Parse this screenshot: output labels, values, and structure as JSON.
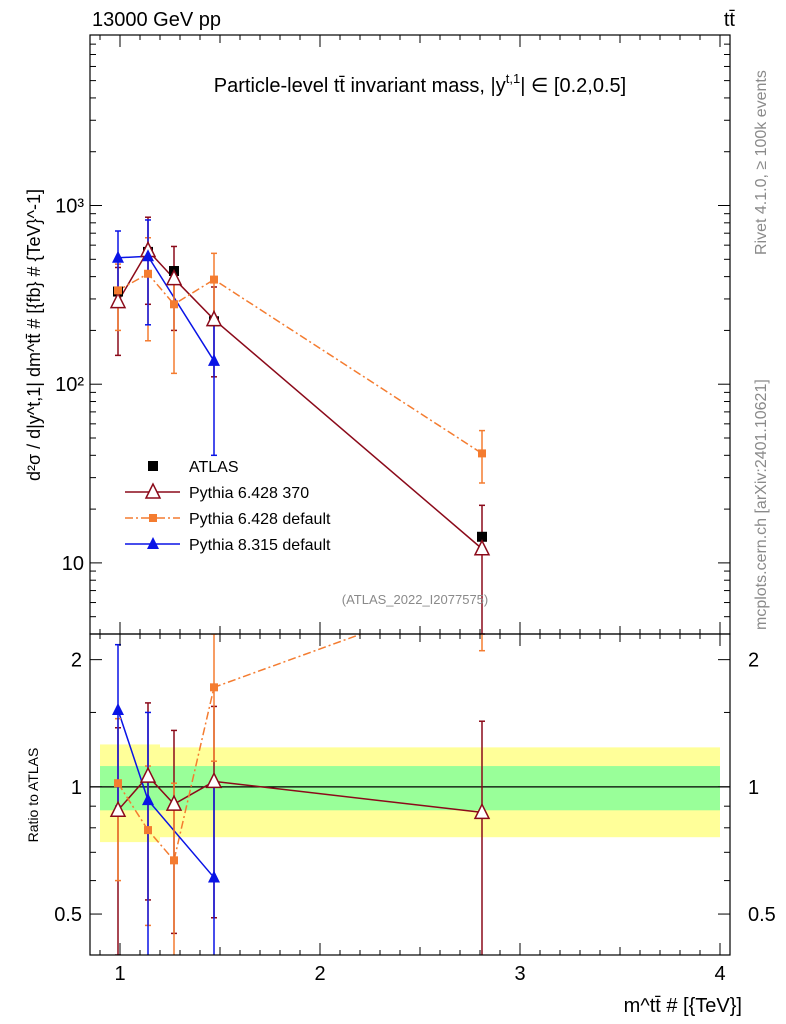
{
  "header": {
    "energy_label": "13000 GeV pp",
    "process_label": "tt̄"
  },
  "side": {
    "rivet_label": "Rivet 4.1.0, ≥ 100k events",
    "mcplots_label": "mcplots.cern.ch [arXiv:2401.10621]"
  },
  "chart_data": {
    "type": "line",
    "title": "Particle-level tt̄ invariant mass, |y^t,1| ∈ [0.2,0.5]",
    "title_parts": {
      "main": "Particle-level tt̄ invariant mass, |y",
      "sup": "t,1",
      "tail": "| ∈ [0.2,0.5]"
    },
    "analysis_id": "(ATLAS_2022_I2077575)",
    "ylabel_main": "d²σ / d|y^t,1| dm^tt̄ # [{fb} # {TeV}^-1]",
    "ylabel_ratio": "Ratio to ATLAS",
    "xlabel": "m^tt̄ # [{TeV}]",
    "xlim": [
      0.85,
      4.05
    ],
    "main_ylim": [
      4.0,
      9000
    ],
    "main_yscale": "log",
    "ratio_ylim": [
      0.4,
      2.3
    ],
    "ratio_yscale": "log",
    "x_ticks": [
      1,
      2,
      3,
      4
    ],
    "x_tick_labels": [
      "1",
      "2",
      "3",
      "4"
    ],
    "main_y_ticks": [
      1000,
      100,
      10
    ],
    "main_y_tick_labels": [
      "10³",
      "10²",
      "10"
    ],
    "ratio_y_ticks": [
      2,
      1,
      0.5
    ],
    "ratio_y_tick_labels": [
      "2",
      "1",
      "0.5"
    ],
    "bins": [
      0.9,
      1.05,
      1.2,
      1.35,
      1.6,
      4.0
    ],
    "band_inner": [
      0.12,
      0.12,
      0.12,
      0.12,
      0.12
    ],
    "band_outer": [
      0.26,
      0.26,
      0.24,
      0.24,
      0.24
    ],
    "series": [
      {
        "name": "ATLAS",
        "color": "#000000",
        "marker": "square",
        "style": "none",
        "x": [
          0.99,
          1.14,
          1.27,
          1.47,
          2.81
        ],
        "y": [
          330,
          550,
          430,
          225,
          14
        ]
      },
      {
        "name": "Pythia 6.428 370",
        "color": "#8b0a1a",
        "marker": "triangle-open",
        "style": "solid",
        "x": [
          0.99,
          1.14,
          1.27,
          1.47,
          2.81
        ],
        "y": [
          290,
          560,
          390,
          230,
          12
        ],
        "ylo": [
          145,
          280,
          200,
          110,
          3.5
        ],
        "yhi": [
          450,
          860,
          590,
          350,
          21
        ],
        "ratio": [
          0.88,
          1.06,
          0.91,
          1.03,
          0.87
        ],
        "rlo": [
          0.4,
          0.54,
          0.45,
          0.49,
          0.33
        ],
        "rhi": [
          1.38,
          1.58,
          1.36,
          1.55,
          1.43
        ]
      },
      {
        "name": "Pythia 6.428 default",
        "color": "#f47c30",
        "marker": "square",
        "style": "dashdot",
        "x": [
          0.99,
          1.14,
          1.27,
          1.47,
          2.81
        ],
        "y": [
          335,
          415,
          280,
          385,
          41
        ],
        "ylo": [
          200,
          175,
          115,
          230,
          28
        ],
        "yhi": [
          470,
          660,
          445,
          540,
          55
        ],
        "ratio": [
          1.02,
          0.79,
          0.67,
          1.72,
          2.92
        ],
        "rlo": [
          0.6,
          0.47,
          0.32,
          1.15,
          2.1
        ],
        "rhi": [
          1.45,
          1.12,
          1.02,
          2.3,
          3.7
        ]
      },
      {
        "name": "Pythia 8.315 default",
        "color": "#0a14e6",
        "marker": "triangle",
        "style": "solid",
        "x": [
          0.99,
          1.14,
          1.27,
          1.47
        ],
        "y": [
          510,
          520,
          0,
          135
        ],
        "x_used": [
          0.99,
          1.14,
          1.47
        ],
        "y_used": [
          510,
          520,
          135
        ],
        "ylo": [
          300,
          215,
          40
        ],
        "yhi": [
          720,
          830,
          230
        ],
        "ratio": [
          1.52,
          0.93,
          0.61
        ],
        "rlo": [
          0.9,
          0.37,
          0.18
        ],
        "rhi": [
          2.17,
          1.5,
          1.03
        ]
      }
    ],
    "legend": [
      "ATLAS",
      "Pythia 6.428 370",
      "Pythia 6.428 default",
      "Pythia 8.315 default"
    ]
  }
}
